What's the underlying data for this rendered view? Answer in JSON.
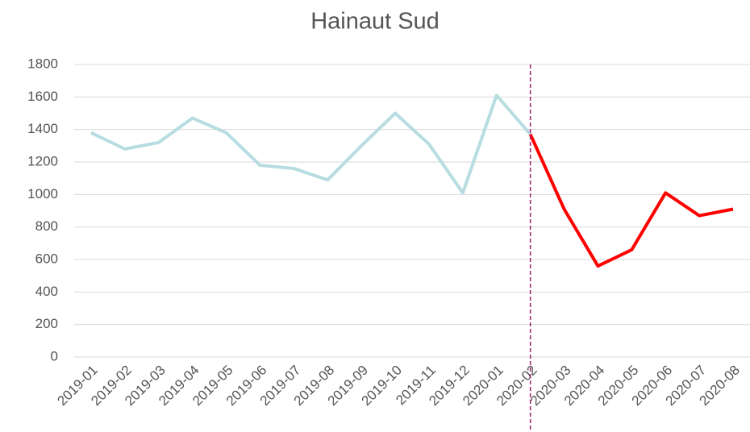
{
  "chart_data": {
    "type": "line",
    "title": "Hainaut Sud",
    "categories": [
      "2019-01",
      "2019-02",
      "2019-03",
      "2019-04",
      "2019-05",
      "2019-06",
      "2019-07",
      "2019-08",
      "2019-09",
      "2019-10",
      "2019-11",
      "2019-12",
      "2020-01",
      "2020-02",
      "2020-03",
      "2020-04",
      "2020-05",
      "2020-06",
      "2020-07",
      "2020-08"
    ],
    "series": [
      {
        "color": "#b7dde1",
        "values": [
          1380,
          1280,
          1320,
          1470,
          1380,
          1180,
          1160,
          1090,
          1300,
          1500,
          1310,
          1010,
          1610,
          1370,
          null,
          null,
          null,
          null,
          null,
          null
        ]
      },
      {
        "color": "#ff0000",
        "values": [
          null,
          null,
          null,
          null,
          null,
          null,
          null,
          null,
          null,
          null,
          null,
          null,
          null,
          1370,
          910,
          560,
          660,
          1010,
          870,
          910
        ]
      }
    ],
    "ylim": [
      0,
      1800
    ],
    "yticks": [
      0,
      200,
      400,
      600,
      800,
      1000,
      1200,
      1400,
      1600,
      1800
    ],
    "grid": true,
    "vline": {
      "category": "2020-02",
      "color": "#a0206e"
    }
  }
}
